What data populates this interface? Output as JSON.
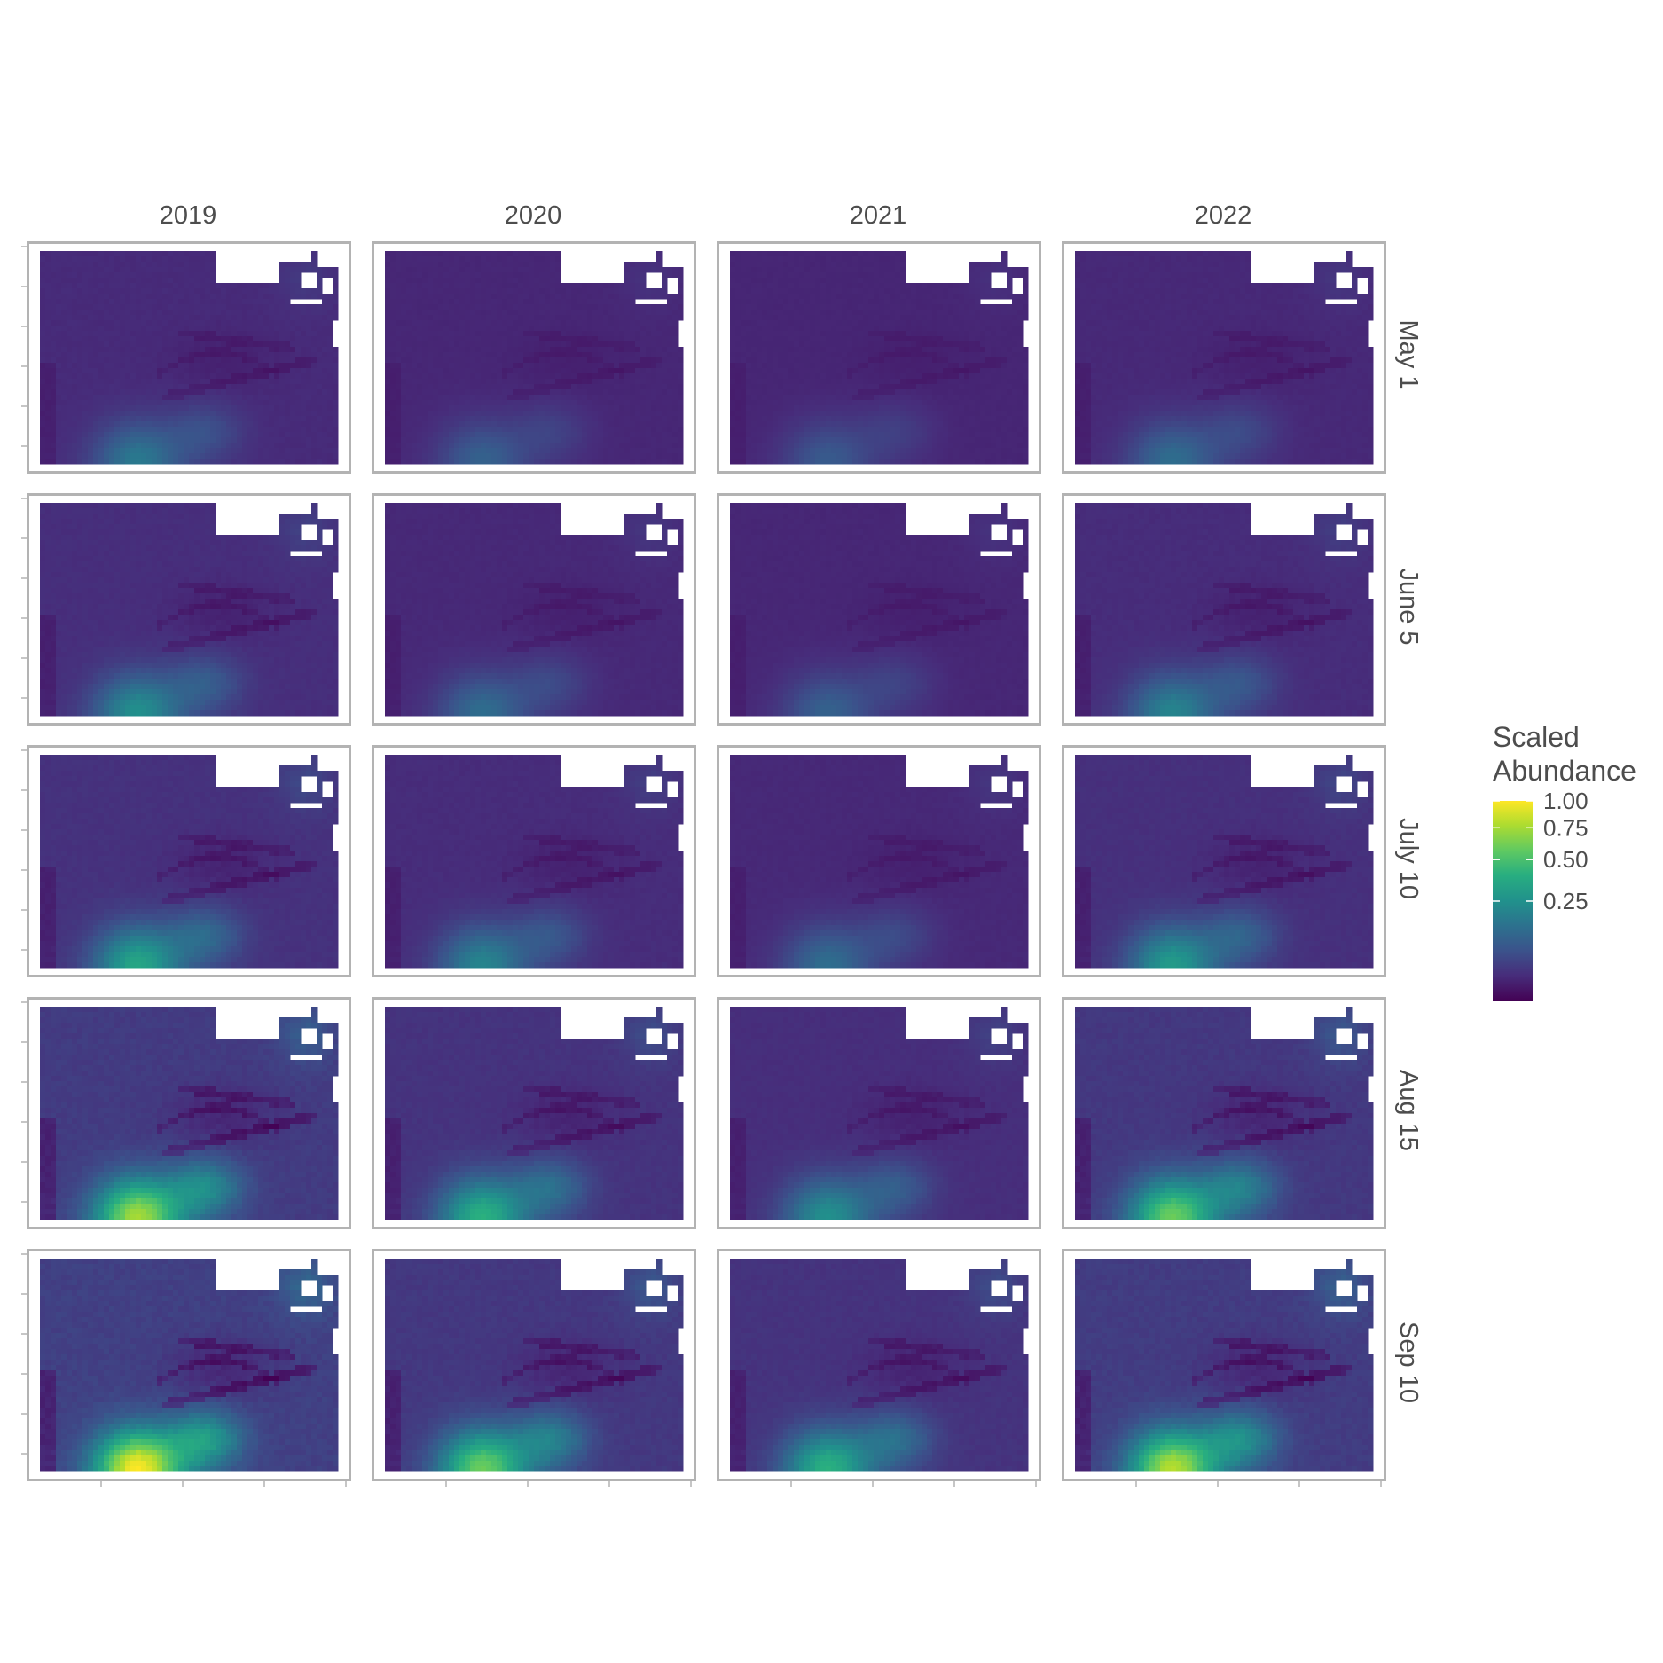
{
  "chart_data": {
    "type": "heatmap",
    "title": "",
    "xlabel": "",
    "ylabel": "",
    "facet_columns": [
      "2019",
      "2020",
      "2021",
      "2022"
    ],
    "facet_rows": [
      "May 1",
      "June 5",
      "July 10",
      "Aug 15",
      "Sep 10"
    ],
    "relative_intensity": [
      [
        0.35,
        0.25,
        0.22,
        0.3
      ],
      [
        0.45,
        0.3,
        0.25,
        0.4
      ],
      [
        0.55,
        0.4,
        0.3,
        0.5
      ],
      [
        0.85,
        0.6,
        0.45,
        0.75
      ],
      [
        1.0,
        0.75,
        0.6,
        0.88
      ]
    ],
    "x_axis_ticks": "4 unlabeled ticks per panel",
    "y_axis_ticks": "6 unlabeled ticks per panel",
    "legend": {
      "title_line1": "Scaled",
      "title_line2": "Abundance",
      "ticks": [
        "1.00",
        "0.75",
        "0.50",
        "0.25"
      ],
      "tick_values": [
        1.0,
        0.75,
        0.5,
        0.25
      ],
      "scale": "sqrt",
      "placement": "right",
      "palette": [
        "#440154",
        "#472d7b",
        "#3b528b",
        "#2c728e",
        "#21918c",
        "#28ae80",
        "#5ec962",
        "#addc30",
        "#fde725"
      ]
    }
  }
}
